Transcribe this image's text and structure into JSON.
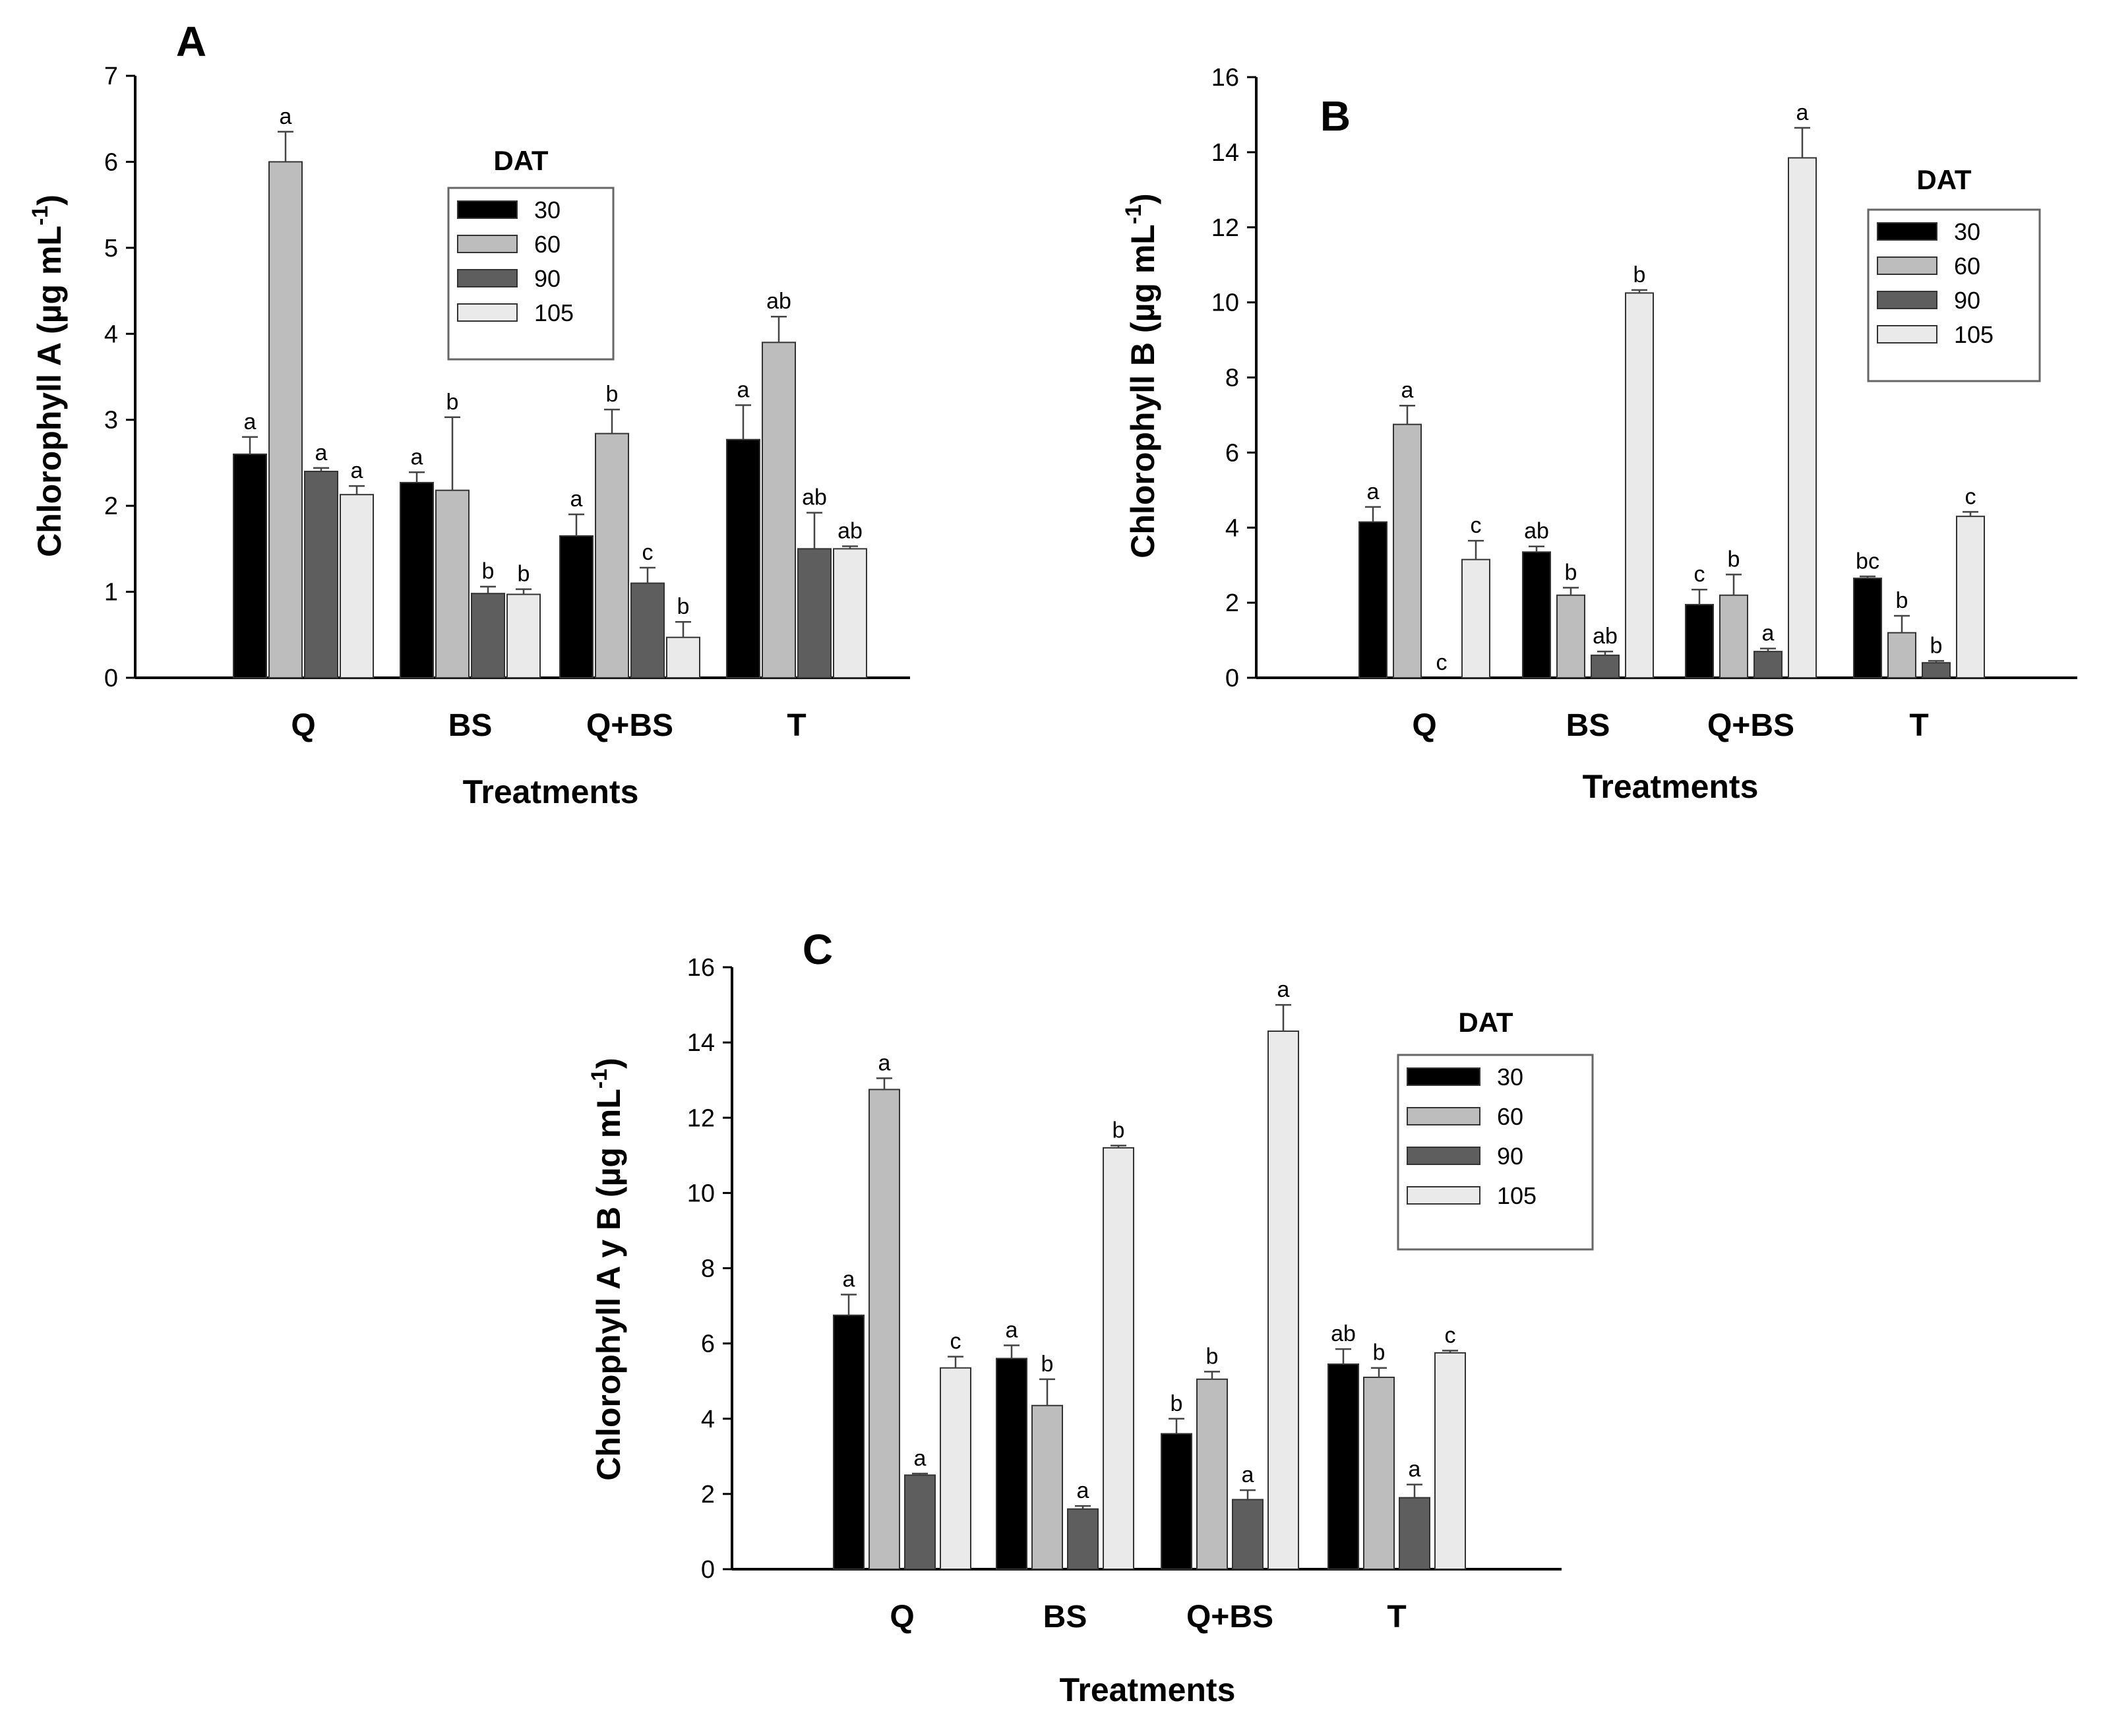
{
  "colors": {
    "30": "#000000",
    "60": "#bdbdbd",
    "90": "#5e5e5e",
    "105": "#eaeaea"
  },
  "chart_data": [
    {
      "id": "A",
      "type": "bar",
      "panel_label": "A",
      "xlabel": "Treatments",
      "ylabel": "Chlorophyll A (µg mL",
      "ylabel_sup": "-1",
      "ylabel_close": ")",
      "ylim": [
        0,
        7
      ],
      "yticks": [
        "0",
        "1",
        "2",
        "3",
        "4",
        "5",
        "6",
        "7"
      ],
      "categories": [
        "Q",
        "BS",
        "Q+BS",
        "T"
      ],
      "legend_title": "DAT",
      "legend_position": "top-right",
      "series": [
        {
          "name": "30",
          "values": [
            2.6,
            2.27,
            1.65,
            2.77
          ],
          "errors": [
            0.2,
            0.12,
            0.25,
            0.4
          ],
          "labels": [
            "a",
            "a",
            "a",
            "a"
          ]
        },
        {
          "name": "60",
          "values": [
            6.0,
            2.18,
            2.84,
            3.9
          ],
          "errors": [
            0.35,
            0.85,
            0.28,
            0.3
          ],
          "labels": [
            "a",
            "b",
            "b",
            "ab"
          ]
        },
        {
          "name": "90",
          "values": [
            2.4,
            0.98,
            1.1,
            1.5
          ],
          "errors": [
            0.04,
            0.08,
            0.18,
            0.42
          ],
          "labels": [
            "a",
            "b",
            "c",
            "ab"
          ]
        },
        {
          "name": "105",
          "values": [
            2.13,
            0.97,
            0.47,
            1.5
          ],
          "errors": [
            0.1,
            0.06,
            0.18,
            0.03
          ],
          "labels": [
            "a",
            "b",
            "b",
            "ab"
          ]
        }
      ]
    },
    {
      "id": "B",
      "type": "bar",
      "panel_label": "B",
      "xlabel": "Treatments",
      "ylabel": "Chlorophyll B (µg mL",
      "ylabel_sup": "-1",
      "ylabel_close": ")",
      "ylim": [
        0,
        16
      ],
      "yticks": [
        "0",
        "2",
        "4",
        "6",
        "8",
        "10",
        "12",
        "14",
        "16"
      ],
      "categories": [
        "Q",
        "BS",
        "Q+BS",
        "T"
      ],
      "legend_title": "DAT",
      "legend_position": "top-right",
      "series": [
        {
          "name": "30",
          "values": [
            4.15,
            3.35,
            1.95,
            2.65
          ],
          "errors": [
            0.4,
            0.15,
            0.4,
            0.05
          ],
          "labels": [
            "a",
            "ab",
            "c",
            "bc"
          ]
        },
        {
          "name": "60",
          "values": [
            6.75,
            2.2,
            2.2,
            1.2
          ],
          "errors": [
            0.5,
            0.2,
            0.55,
            0.45
          ],
          "labels": [
            "a",
            "b",
            "b",
            "b"
          ]
        },
        {
          "name": "90",
          "values": [
            0,
            0.6,
            0.7,
            0.4
          ],
          "errors": [
            0,
            0.1,
            0.08,
            0.05
          ],
          "labels": [
            "c",
            "ab",
            "a",
            "b"
          ]
        },
        {
          "name": "105",
          "values": [
            3.15,
            10.25,
            13.85,
            4.3
          ],
          "errors": [
            0.5,
            0.08,
            0.8,
            0.12
          ],
          "labels": [
            "c",
            "b",
            "a",
            "c"
          ]
        }
      ]
    },
    {
      "id": "C",
      "type": "bar",
      "panel_label": "C",
      "xlabel": "Treatments",
      "ylabel": "Chlorophyll A y B (µg mL",
      "ylabel_sup": "-1",
      "ylabel_close": ")",
      "ylim": [
        0,
        16
      ],
      "yticks": [
        "0",
        "2",
        "4",
        "6",
        "8",
        "10",
        "12",
        "14",
        "16"
      ],
      "categories": [
        "Q",
        "BS",
        "Q+BS",
        "T"
      ],
      "legend_title": "DAT",
      "legend_position": "top-right",
      "series": [
        {
          "name": "30",
          "values": [
            6.75,
            5.6,
            3.6,
            5.45
          ],
          "errors": [
            0.55,
            0.35,
            0.4,
            0.4
          ],
          "labels": [
            "a",
            "a",
            "b",
            "ab"
          ]
        },
        {
          "name": "60",
          "values": [
            12.75,
            4.35,
            5.05,
            5.1
          ],
          "errors": [
            0.3,
            0.7,
            0.2,
            0.25
          ],
          "labels": [
            "a",
            "b",
            "b",
            "b"
          ]
        },
        {
          "name": "90",
          "values": [
            2.5,
            1.6,
            1.85,
            1.9
          ],
          "errors": [
            0.04,
            0.08,
            0.25,
            0.35
          ],
          "labels": [
            "a",
            "a",
            "a",
            "a"
          ]
        },
        {
          "name": "105",
          "values": [
            5.35,
            11.2,
            14.3,
            5.75
          ],
          "errors": [
            0.3,
            0.06,
            0.7,
            0.06
          ],
          "labels": [
            "c",
            "b",
            "a",
            "c"
          ]
        }
      ]
    }
  ]
}
